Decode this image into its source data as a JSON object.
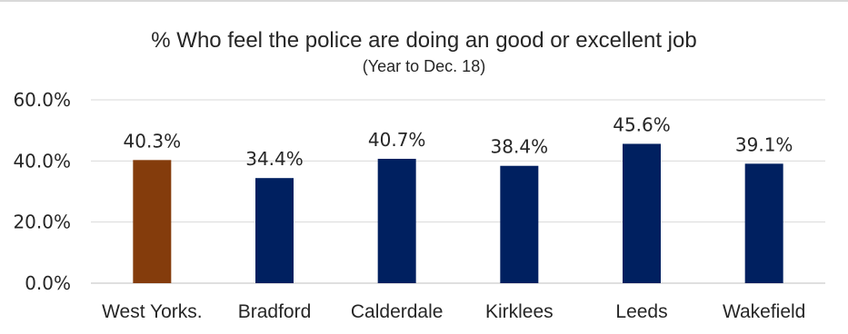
{
  "chart_data": {
    "type": "bar",
    "title": "% Who feel the police are doing an good or excellent job",
    "subtitle": "(Year to Dec. 18)",
    "categories": [
      "West Yorks.",
      "Bradford",
      "Calderdale",
      "Kirklees",
      "Leeds",
      "Wakefield"
    ],
    "values": [
      40.3,
      34.4,
      40.7,
      38.4,
      45.6,
      39.1
    ],
    "data_labels": [
      "40.3%",
      "34.4%",
      "40.7%",
      "38.4%",
      "45.6%",
      "39.1%"
    ],
    "ylim": [
      0,
      60
    ],
    "yticks": [
      0,
      20,
      40,
      60
    ],
    "ytick_labels": [
      "0.0%",
      "20.0%",
      "40.0%",
      "60.0%"
    ],
    "grid": true,
    "legend": "none",
    "colors": {
      "highlight": "#843c0c",
      "bar": "#002060",
      "grid": "#d9d9d9",
      "axis": "#bfbfbf"
    },
    "bar_colors": [
      "#843c0c",
      "#002060",
      "#002060",
      "#002060",
      "#002060",
      "#002060"
    ]
  }
}
